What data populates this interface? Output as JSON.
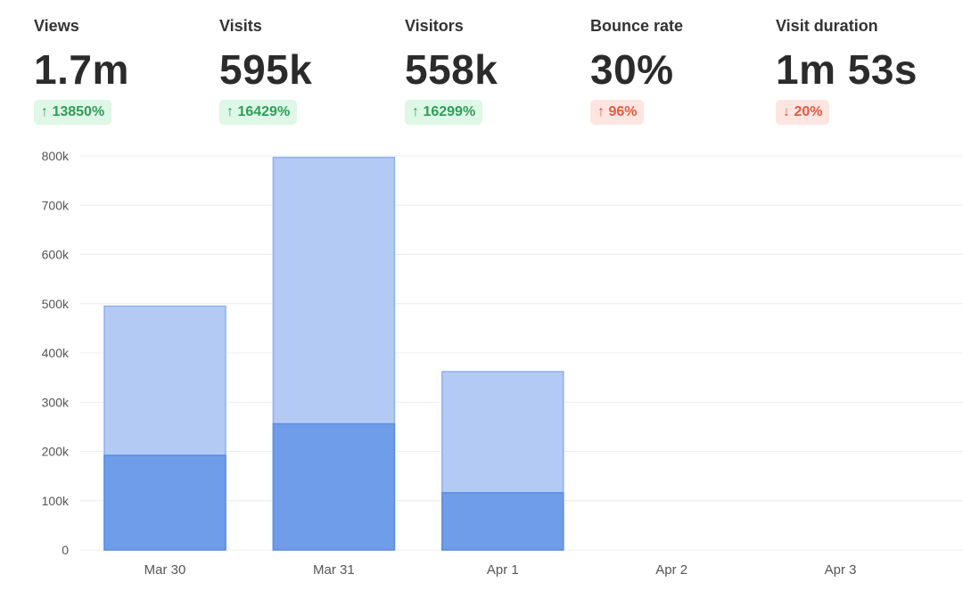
{
  "metrics": [
    {
      "label": "Views",
      "value": "1.7m",
      "change": "↑ 13850%",
      "tone": "up-good"
    },
    {
      "label": "Visits",
      "value": "595k",
      "change": "↑ 16429%",
      "tone": "up-good"
    },
    {
      "label": "Visitors",
      "value": "558k",
      "change": "↑ 16299%",
      "tone": "up-good"
    },
    {
      "label": "Bounce rate",
      "value": "30%",
      "change": "↑ 96%",
      "tone": "up-bad"
    },
    {
      "label": "Visit duration",
      "value": "1m 53s",
      "change": "↓ 20%",
      "tone": "down-bad"
    }
  ],
  "colors": {
    "bar_light": "#b3cbf4",
    "bar_light_stroke": "#8fb0ea",
    "bar_dark": "#6f9de9",
    "bar_dark_stroke": "#5a8ce0",
    "grid": "#ececec",
    "tick_text": "#555555"
  },
  "chart_data": {
    "type": "bar",
    "stacked": "overlay",
    "categories": [
      "Mar 30",
      "Mar 31",
      "Apr 1",
      "Apr 2",
      "Apr 3"
    ],
    "series": [
      {
        "values": [
          495000,
          797000,
          362000,
          0,
          0
        ]
      },
      {
        "values": [
          192000,
          256000,
          116000,
          0,
          0
        ]
      }
    ],
    "y_ticks": [
      "0",
      "100k",
      "200k",
      "300k",
      "400k",
      "500k",
      "600k",
      "700k",
      "800k"
    ],
    "ylim": [
      0,
      800000
    ],
    "grid": true
  }
}
